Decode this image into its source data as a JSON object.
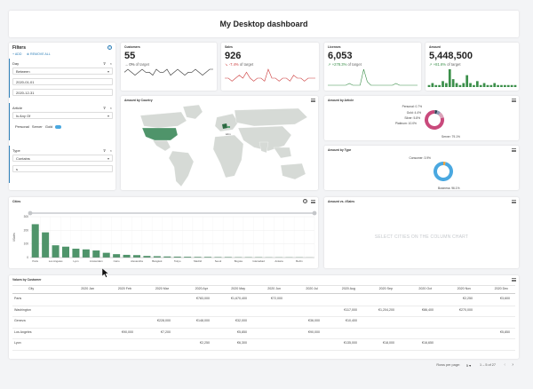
{
  "header": {
    "title": "My Desktop dashboard"
  },
  "filters": {
    "title": "Filters",
    "add_label": "ADD",
    "remove_all_label": "REMOVE ALL",
    "day": {
      "label": "Day",
      "operator": "Between",
      "from": "2020-01-01",
      "to": "2020-12-31"
    },
    "article": {
      "label": "Article",
      "operator": "Is Any Of",
      "values": [
        "Personal",
        "Server",
        "Gold"
      ]
    },
    "type": {
      "label": "Type",
      "operator": "Contains",
      "value": "s"
    }
  },
  "kpis": [
    {
      "title": "Customers",
      "value": "55",
      "delta": "0%",
      "suffix": "of target",
      "trend": "flat",
      "spark": [
        5,
        6,
        5,
        4,
        5,
        6,
        5,
        5,
        4,
        6,
        5,
        5,
        6,
        4,
        5,
        6,
        5,
        4,
        5,
        5,
        6,
        5,
        4,
        5,
        6,
        6
      ],
      "color": "#333333"
    },
    {
      "title": "Sales",
      "value": "926",
      "delta": "-7.4%",
      "suffix": "of target",
      "trend": "down",
      "spark": [
        3,
        3,
        2,
        3,
        4,
        3,
        5,
        3,
        2,
        3,
        3,
        2,
        6,
        3,
        3,
        2,
        3,
        3,
        2,
        4,
        3,
        3,
        2,
        3,
        3,
        3
      ],
      "color": "#cc3a3a"
    },
    {
      "title": "Licenses",
      "value": "6,053",
      "delta": "+278.3%",
      "suffix": "of target",
      "trend": "up",
      "spark": [
        1,
        1,
        1,
        1,
        1,
        1,
        2,
        1,
        1,
        1,
        10,
        3,
        1,
        1,
        1,
        1,
        1,
        1,
        1,
        2,
        1,
        1,
        1,
        1,
        1,
        1
      ],
      "color": "#3b8f4a"
    },
    {
      "title": "Amount",
      "value": "5,448,500",
      "delta": "+81.6%",
      "suffix": "of target",
      "trend": "up",
      "spark": [
        1,
        2,
        1,
        1,
        3,
        2,
        9,
        4,
        2,
        1,
        2,
        6,
        2,
        1,
        3,
        1,
        2,
        1,
        1,
        2,
        1,
        1,
        1,
        1,
        1,
        1
      ],
      "color": "#3b8f4a"
    }
  ],
  "map": {
    "title": "Amount by Country",
    "note": "kdm"
  },
  "by_article": {
    "title": "Amount by Article"
  },
  "by_type": {
    "title": "Amount by Type"
  },
  "cities": {
    "title": "Cities",
    "help": "?"
  },
  "amount_sales": {
    "title": "Amount vs. #Sales",
    "empty": "SELECT CITIES ON THE COLUMN CHART"
  },
  "chart_data": [
    {
      "type": "pie",
      "title": "Amount by Article",
      "labels": [
        "Personal",
        "Gold",
        "Silver",
        "Platinum",
        "Server"
      ],
      "values": [
        0.7,
        4.4,
        5.8,
        10.0,
        79.1
      ],
      "display": [
        "Personal: 0.7%",
        "Gold: 4.4%",
        "Silver: 5.8%",
        "Platinum: 10.0%",
        "Server: 79.1%"
      ],
      "colors": [
        "#e8b4c9",
        "#2c3e50",
        "#8e9bb5",
        "#d9a3b9",
        "#c94a7c"
      ]
    },
    {
      "type": "pie",
      "title": "Amount by Type",
      "labels": [
        "Consumer",
        "Business"
      ],
      "values": [
        3.9,
        96.1
      ],
      "display": [
        "Consumer: 3.9%",
        "Business: 96.1%"
      ],
      "colors": [
        "#f0a23b",
        "#4aa8e0"
      ]
    },
    {
      "type": "bar",
      "title": "Cities",
      "ylabel": "#Sales",
      "ylim": [
        0,
        300
      ],
      "yticks": [
        "0",
        "100",
        "200",
        "300"
      ],
      "x_tick_labels": [
        "Paris",
        "Los Angeles",
        "Lyon",
        "Amsterdam",
        "Cairo",
        "Alexandria",
        "Bangkok",
        "Tokyo",
        "Madrid",
        "Seoul",
        "Bogota",
        "Islamabad",
        "Ankara",
        "Berlin"
      ],
      "values": [
        245,
        185,
        90,
        80,
        65,
        60,
        52,
        35,
        25,
        20,
        18,
        12,
        10,
        8,
        7,
        6,
        5,
        5,
        4,
        4,
        3,
        3,
        3,
        2,
        2,
        2,
        2,
        1
      ],
      "color": "#4f946a"
    }
  ],
  "table": {
    "title": "Values by Customer",
    "columns": [
      "City",
      "2020 Jan",
      "2020 Feb",
      "2020 Mar",
      "2020 Apr",
      "2020 May",
      "2020 Jun",
      "2020 Jul",
      "2020 Aug",
      "2020 Sep",
      "2020 Oct",
      "2020 Nov",
      "2020 Dec"
    ],
    "rows": [
      [
        "Paris",
        "",
        "",
        "",
        "€783,000",
        "€1,670,400",
        "€72,000",
        "",
        "",
        "",
        "",
        "€2,250",
        "€3,600"
      ],
      [
        "Washington",
        "",
        "",
        "",
        "",
        "",
        "",
        "",
        "€117,000",
        "€1,204,200",
        "€86,400",
        "€270,000",
        ""
      ],
      [
        "Geneva",
        "",
        "",
        "€228,000",
        "€148,000",
        "€32,000",
        "",
        "€36,000",
        "€10,400",
        "",
        "",
        "",
        ""
      ],
      [
        "Los Angeles",
        "",
        "€90,000",
        "€7,200",
        "",
        "€5,850",
        "",
        "€90,000",
        "",
        "",
        "",
        "",
        "€5,850"
      ],
      [
        "Lyon",
        "",
        "",
        "",
        "€2,250",
        "€6,300",
        "",
        "",
        "€135,000",
        "€18,000",
        "€16,650",
        "",
        ""
      ]
    ],
    "rows_per_page_label": "Rows per page:",
    "rows_per_page": "5",
    "range": "1 – 5 of 27"
  }
}
